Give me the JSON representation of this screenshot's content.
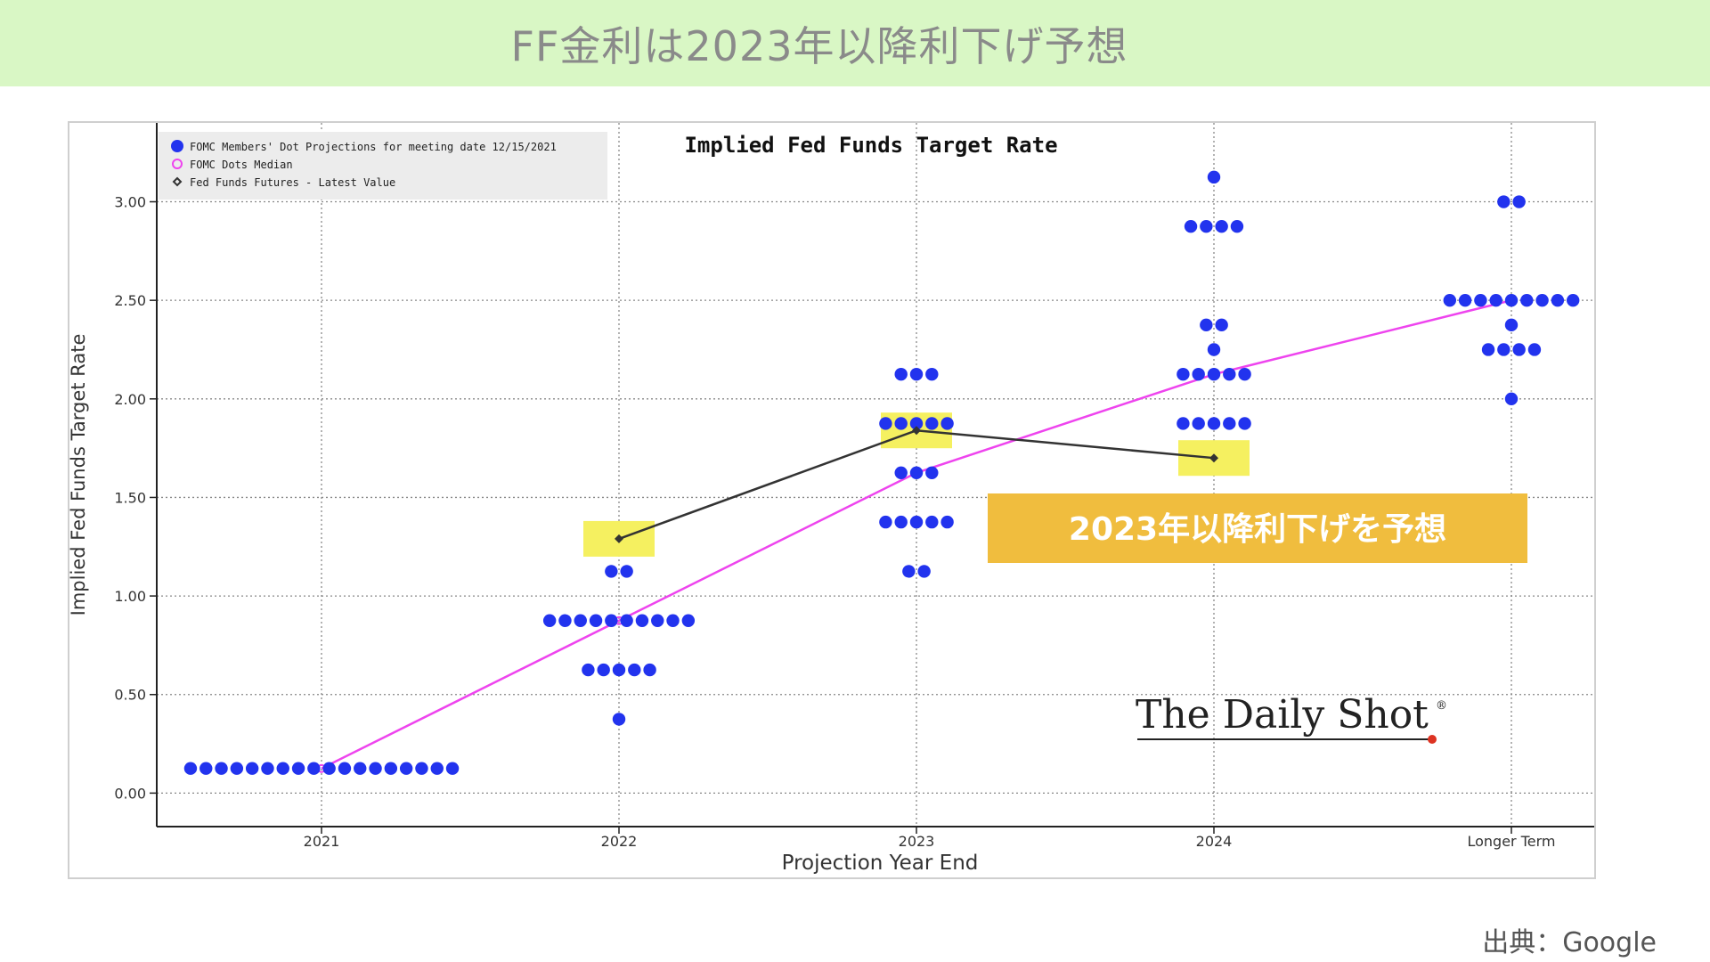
{
  "banner": {
    "title": "FF金利は2023年以降利下げ予想"
  },
  "source_note": "出典：Google",
  "colors": {
    "banner_bg": "#d9f7c5",
    "dots": "#2233ee",
    "median": "#ee44ee",
    "futures": "#333333",
    "highlight": "#f5f060",
    "callout_bg": "#f0bd3e"
  },
  "callout": {
    "text": "2023年以降利下げを予想"
  },
  "watermark": {
    "text": "The Daily Shot",
    "mark": "®"
  },
  "chart_data": {
    "type": "scatter",
    "title": "Implied Fed Funds Target Rate",
    "xlabel": "Projection Year End",
    "ylabel": "Implied Fed Funds Target Rate",
    "categories": [
      "2021",
      "2022",
      "2023",
      "2024",
      "Longer Term"
    ],
    "yticks": [
      "0.00",
      "0.50",
      "1.00",
      "1.50",
      "2.00",
      "2.50",
      "3.00"
    ],
    "ylim": [
      -0.17,
      3.4
    ],
    "grid": true,
    "legend_position": "top-left",
    "legend": [
      "FOMC Members' Dot Projections for meeting date 12/15/2021",
      "FOMC Dots Median",
      "Fed Funds Futures - Latest Value"
    ],
    "series": [
      {
        "name": "FOMC Members' Dot Projections for meeting date 12/15/2021",
        "kind": "dots",
        "points": [
          {
            "x": "2021",
            "y": 0.125,
            "count": 18
          },
          {
            "x": "2022",
            "y": 1.125,
            "count": 2
          },
          {
            "x": "2022",
            "y": 0.875,
            "count": 10
          },
          {
            "x": "2022",
            "y": 0.625,
            "count": 5
          },
          {
            "x": "2022",
            "y": 0.375,
            "count": 1
          },
          {
            "x": "2023",
            "y": 2.125,
            "count": 3
          },
          {
            "x": "2023",
            "y": 1.875,
            "count": 5
          },
          {
            "x": "2023",
            "y": 1.625,
            "count": 3
          },
          {
            "x": "2023",
            "y": 1.375,
            "count": 5
          },
          {
            "x": "2023",
            "y": 1.125,
            "count": 2
          },
          {
            "x": "2024",
            "y": 3.125,
            "count": 1
          },
          {
            "x": "2024",
            "y": 2.875,
            "count": 4
          },
          {
            "x": "2024",
            "y": 2.375,
            "count": 2
          },
          {
            "x": "2024",
            "y": 2.25,
            "count": 1
          },
          {
            "x": "2024",
            "y": 2.125,
            "count": 5
          },
          {
            "x": "2024",
            "y": 1.875,
            "count": 5
          },
          {
            "x": "Longer Term",
            "y": 3.0,
            "count": 2
          },
          {
            "x": "Longer Term",
            "y": 2.5,
            "count": 9
          },
          {
            "x": "Longer Term",
            "y": 2.375,
            "count": 1
          },
          {
            "x": "Longer Term",
            "y": 2.25,
            "count": 4
          },
          {
            "x": "Longer Term",
            "y": 2.0,
            "count": 1
          }
        ]
      },
      {
        "name": "FOMC Dots Median",
        "kind": "line",
        "x": [
          "2021",
          "2022",
          "2023",
          "2024",
          "Longer Term"
        ],
        "values": [
          0.125,
          0.875,
          1.625,
          2.125,
          2.5
        ]
      },
      {
        "name": "Fed Funds Futures - Latest Value",
        "kind": "line",
        "x": [
          "2022",
          "2023",
          "2024"
        ],
        "values": [
          1.29,
          1.84,
          1.7
        ]
      }
    ]
  }
}
